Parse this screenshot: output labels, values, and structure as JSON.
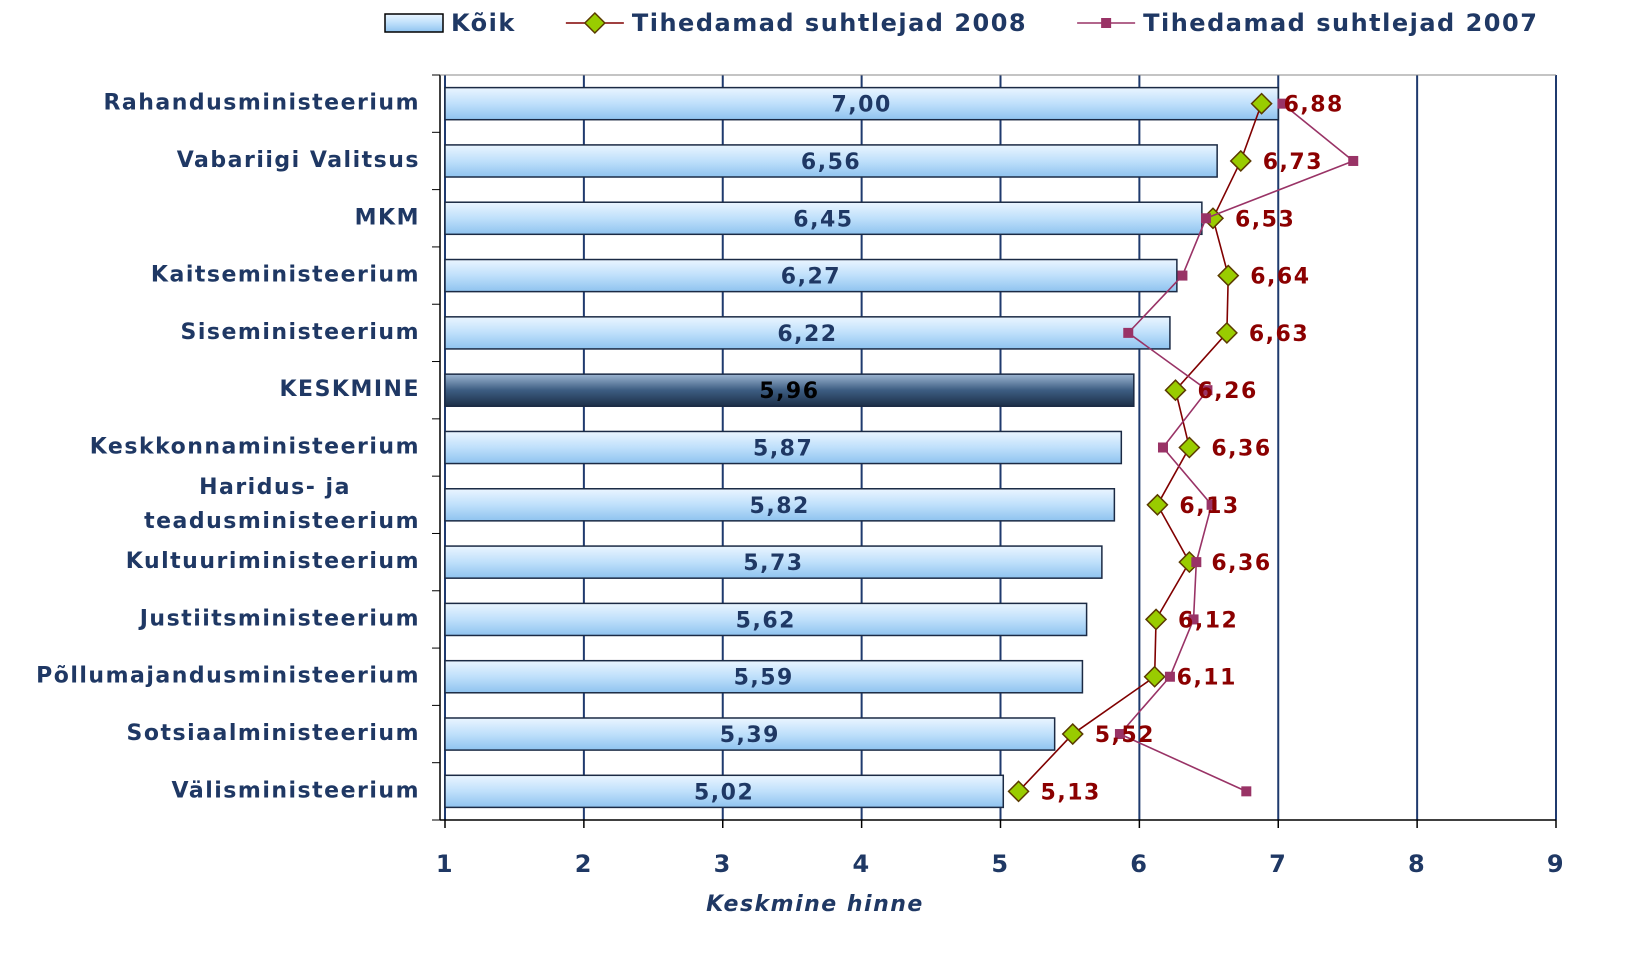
{
  "chart_data": {
    "type": "bar-line",
    "categories": [
      "Rahandusministeerium",
      "Vabariigi Valitsus",
      "MKM",
      "Kaitseministeerium",
      "Siseministeerium",
      "KESKMINE",
      "Keskkonnaministeerium",
      "Haridus- ja\nteadusministeerium",
      "Kultuuriministeerium",
      "Justiitsministeerium",
      "Põllumajandusministeerium",
      "Sotsiaalministeerium",
      "Välisministeerium"
    ],
    "series": [
      {
        "name": "Kõik",
        "kind": "bar",
        "color": "#b3dafa",
        "colors": [
          "#b3dafa",
          "#b3dafa",
          "#b3dafa",
          "#b3dafa",
          "#b3dafa",
          "#2f4a6a",
          "#b3dafa",
          "#b3dafa",
          "#b3dafa",
          "#b3dafa",
          "#b3dafa",
          "#b3dafa",
          "#b3dafa"
        ],
        "values": [
          7.0,
          6.56,
          6.45,
          6.27,
          6.22,
          5.96,
          5.87,
          5.82,
          5.73,
          5.62,
          5.59,
          5.39,
          5.02
        ],
        "value_labels": [
          "7,00",
          "6,56",
          "6,45",
          "6,27",
          "6,22",
          "5,96",
          "5,87",
          "5,82",
          "5,73",
          "5,62",
          "5,59",
          "5,39",
          "5,02"
        ]
      },
      {
        "name": "Tihedamad suhtlejad 2008",
        "kind": "line",
        "marker": "diamond",
        "color": "#800000",
        "marker_color": "#99cc00",
        "values": [
          6.88,
          6.73,
          6.53,
          6.64,
          6.63,
          6.26,
          6.36,
          6.13,
          6.36,
          6.12,
          6.11,
          5.52,
          5.13
        ],
        "value_labels": [
          "6,88",
          "6,73",
          "6,53",
          "6,64",
          "6,63",
          "6,26",
          "6,36",
          "6,13",
          "6,36",
          "6,12",
          "6,11",
          "5,52",
          "5,13"
        ]
      },
      {
        "name": "Tihedamad suhtlejad 2007",
        "kind": "line",
        "marker": "square",
        "color": "#993366",
        "marker_color": "#993366",
        "values": [
          7.03,
          7.54,
          6.48,
          6.31,
          5.92,
          6.49,
          6.17,
          6.52,
          6.41,
          6.39,
          6.22,
          5.86,
          6.77
        ]
      }
    ],
    "x_label": "Keskmine hinne",
    "xlim": [
      1,
      9
    ],
    "xticks": [
      1,
      2,
      3,
      4,
      5,
      6,
      7,
      8,
      9
    ],
    "grid": true,
    "legend": "top"
  }
}
